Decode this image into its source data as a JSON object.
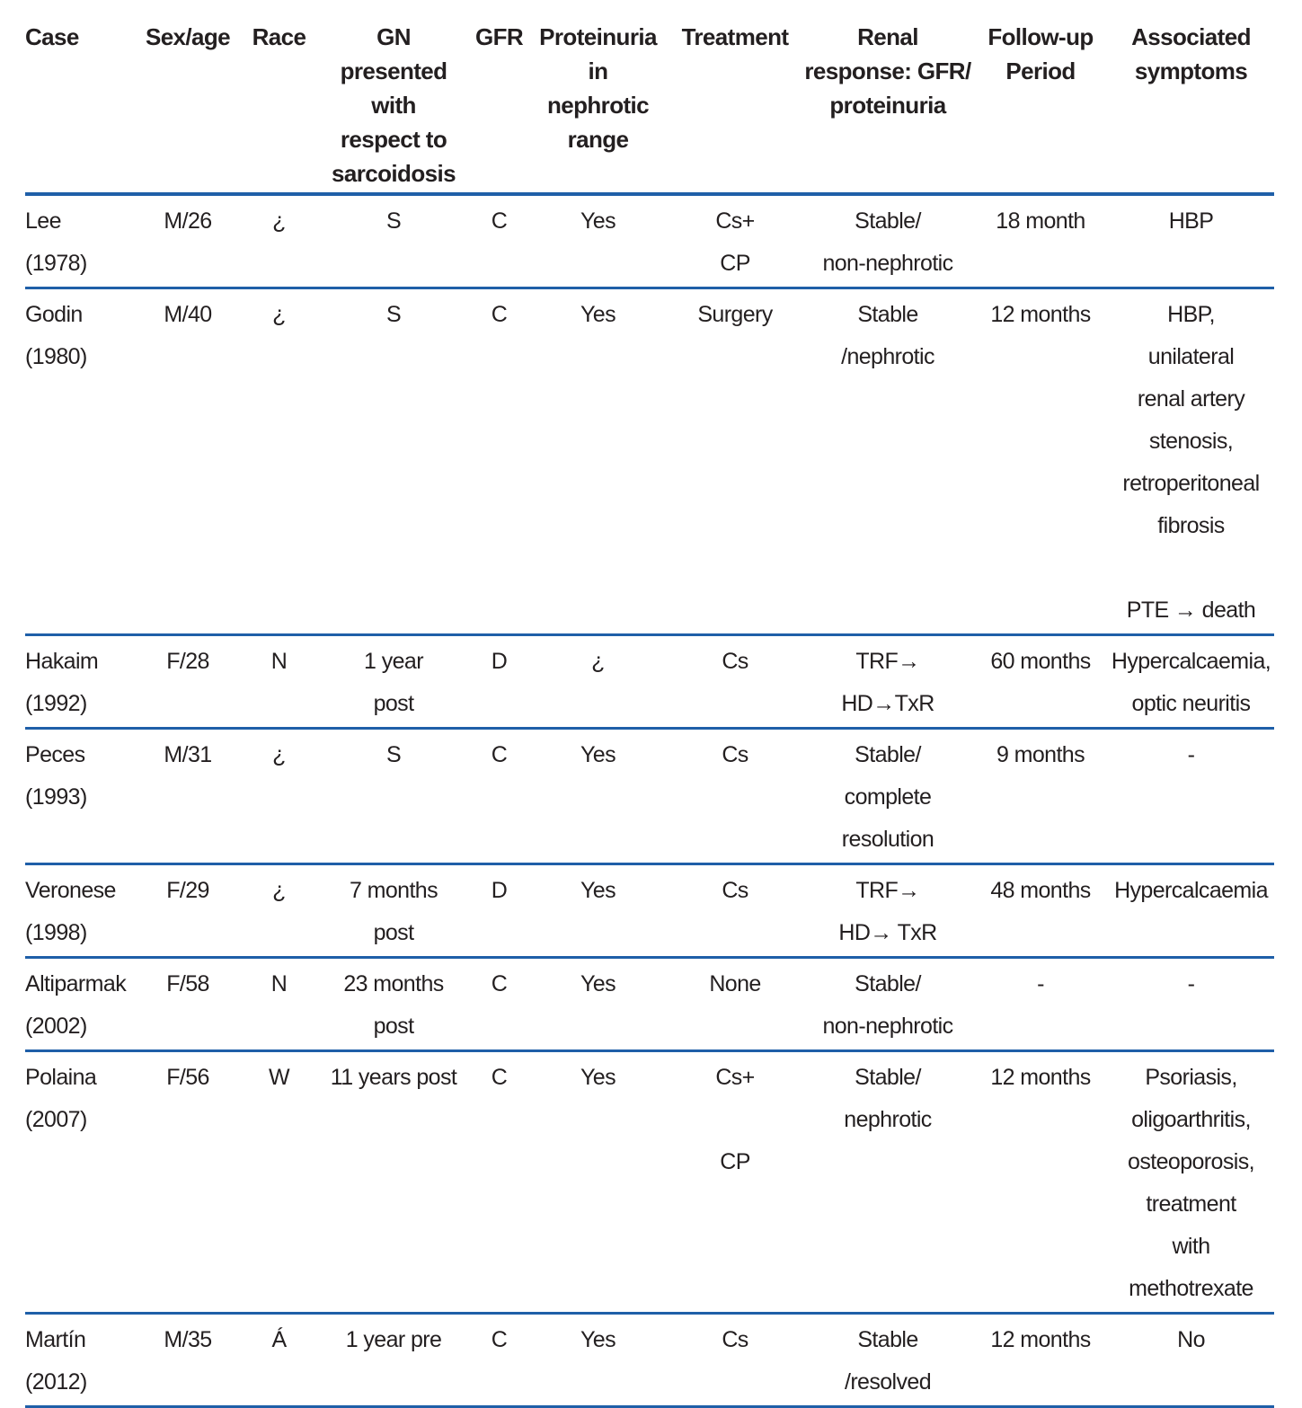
{
  "colors": {
    "rule": "#1f5fa8",
    "text": "#231f20"
  },
  "table": {
    "columns": [
      {
        "key": "case",
        "label": "Case"
      },
      {
        "key": "sex_age",
        "label": "Sex/age"
      },
      {
        "key": "race",
        "label": "Race"
      },
      {
        "key": "gn",
        "label": "GN\npresented with\nrespect to\nsarcoidosis"
      },
      {
        "key": "gfr",
        "label": "GFR"
      },
      {
        "key": "proteinuria",
        "label": "Proteinuria\nin\nnephrotic\nrange"
      },
      {
        "key": "treatment",
        "label": "Treatment"
      },
      {
        "key": "renal_response",
        "label": "Renal\nresponse: GFR/\nproteinuria"
      },
      {
        "key": "followup",
        "label": "Follow-up\nPeriod"
      },
      {
        "key": "symptoms",
        "label": "Associated\nsymptoms"
      }
    ],
    "rows": [
      {
        "case": "Lee\n(1978)",
        "sex_age": "M/26",
        "race": "¿",
        "gn": "S",
        "gfr": "C",
        "proteinuria": "Yes",
        "treatment": "Cs+\nCP",
        "renal_response": "Stable/\nnon-nephrotic",
        "followup": "18 month",
        "symptoms": "HBP"
      },
      {
        "case": "Godin\n(1980)",
        "sex_age": "M/40",
        "race": "¿",
        "gn": "S",
        "gfr": "C",
        "proteinuria": "Yes",
        "treatment": "Surgery",
        "renal_response": "Stable\n/nephrotic",
        "followup": "12 months",
        "symptoms": "HBP,\nunilateral\nrenal artery\nstenosis,\nretroperitoneal\nfibrosis\n\nPTE → death"
      },
      {
        "case": "Hakaim\n(1992)",
        "sex_age": "F/28",
        "race": "N",
        "gn": "1 year\npost",
        "gfr": "D",
        "proteinuria": "¿",
        "treatment": "Cs",
        "renal_response": "TRF→\nHD→TxR",
        "followup": "60 months",
        "symptoms": "Hypercalcaemia,\noptic neuritis"
      },
      {
        "case": "Peces\n(1993)",
        "sex_age": "M/31",
        "race": "¿",
        "gn": "S",
        "gfr": "C",
        "proteinuria": "Yes",
        "treatment": "Cs",
        "renal_response": "Stable/\ncomplete\nresolution",
        "followup": "9 months",
        "symptoms": "-"
      },
      {
        "case": "Veronese\n(1998)",
        "sex_age": "F/29",
        "race": "¿",
        "gn": "7 months\npost",
        "gfr": "D",
        "proteinuria": "Yes",
        "treatment": "Cs",
        "renal_response": "TRF→\nHD→ TxR",
        "followup": "48 months",
        "symptoms": "Hypercalcaemia"
      },
      {
        "case": "Altiparmak\n(2002)",
        "sex_age": "F/58",
        "race": "N",
        "gn": "23 months\npost",
        "gfr": "C",
        "proteinuria": "Yes",
        "treatment": "None",
        "renal_response": "Stable/\nnon-nephrotic",
        "followup": "-",
        "symptoms": "-"
      },
      {
        "case": "Polaina\n(2007)",
        "sex_age": "F/56",
        "race": "W",
        "gn": "11 years post",
        "gfr": "C",
        "proteinuria": "Yes",
        "treatment": "Cs+\n\nCP",
        "renal_response": "Stable/\nnephrotic",
        "followup": "12 months",
        "symptoms": "Psoriasis,\noligoarthritis,\nosteoporosis,\ntreatment\nwith\nmethotrexate"
      },
      {
        "case": "Martín\n(2012)",
        "sex_age": "M/35",
        "race": "Á",
        "gn": "1 year pre",
        "gfr": "C",
        "proteinuria": "Yes",
        "treatment": "Cs",
        "renal_response": "Stable\n/resolved",
        "followup": "12 months",
        "symptoms": "No"
      }
    ]
  }
}
